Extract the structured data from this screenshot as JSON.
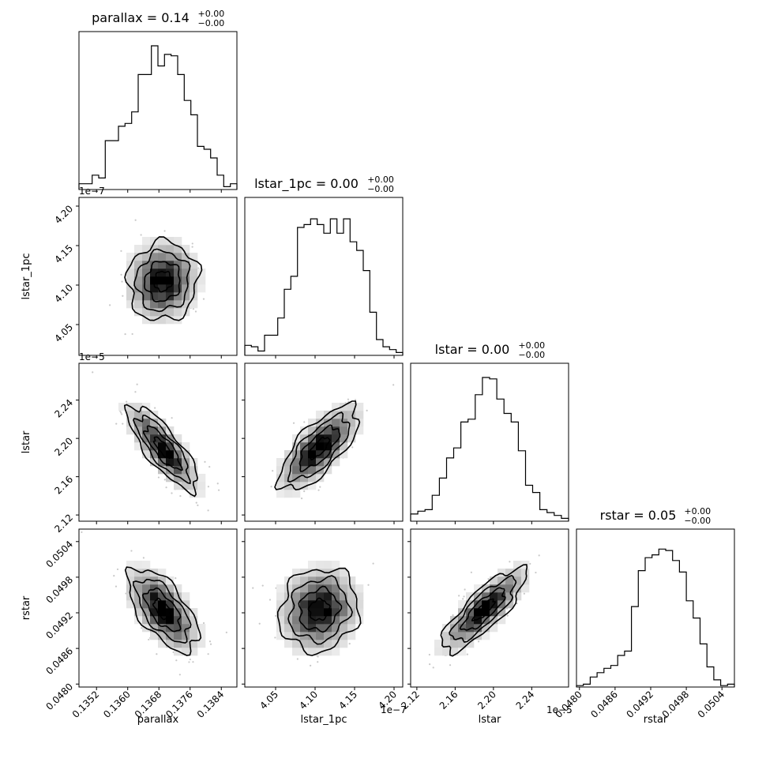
{
  "chart_data": {
    "type": "corner",
    "parameters": [
      "parallax",
      "lstar_1pc",
      "lstar",
      "rstar"
    ],
    "titles": [
      {
        "main": "parallax = 0.14",
        "sup": "+0.00",
        "sub": "−0.00"
      },
      {
        "main": "lstar_1pc = 0.00",
        "sup": "+0.00",
        "sub": "−0.00"
      },
      {
        "main": "lstar = 0.00",
        "sup": "+0.00",
        "sub": "−0.00"
      },
      {
        "main": "rstar = 0.05",
        "sup": "+0.00",
        "sub": "−0.00"
      }
    ],
    "axis_labels": {
      "x": [
        "parallax",
        "lstar_1pc",
        "lstar",
        "rstar"
      ],
      "y": [
        "lstar_1pc",
        "lstar",
        "rstar"
      ]
    },
    "offset_texts": {
      "lstar_1pc_y": "1e−7",
      "lstar_y": "1e−5",
      "lstar_1pc_x": "1e−7",
      "lstar_x": "1e−5"
    },
    "ranges": [
      [
        0.13475,
        0.1388
      ],
      [
        4.011,
        4.211
      ],
      [
        2.1135,
        2.2785
      ],
      [
        0.04795,
        0.05061
      ]
    ],
    "tick_values": [
      [
        0.1352,
        0.136,
        0.1368,
        0.1376,
        0.1384
      ],
      [
        4.05,
        4.1,
        4.15,
        4.2
      ],
      [
        2.12,
        2.16,
        2.2,
        2.24
      ],
      [
        0.048,
        0.0486,
        0.0492,
        0.0498,
        0.0504
      ]
    ],
    "tick_labels": [
      [
        "0.1352",
        "0.1360",
        "0.1368",
        "0.1376",
        "0.1384"
      ],
      [
        "4.05",
        "4.10",
        "4.15",
        "4.20"
      ],
      [
        "2.12",
        "2.16",
        "2.20",
        "2.24"
      ],
      [
        "0.0480",
        "0.0486",
        "0.0492",
        "0.0498",
        "0.0504"
      ]
    ],
    "histograms": [
      [
        0.04,
        0.04,
        0.1,
        0.08,
        0.34,
        0.34,
        0.44,
        0.46,
        0.54,
        0.8,
        0.8,
        1.0,
        0.86,
        0.94,
        0.93,
        0.8,
        0.62,
        0.52,
        0.3,
        0.28,
        0.22,
        0.1,
        0.02,
        0.04
      ],
      [
        0.07,
        0.06,
        0.03,
        0.14,
        0.14,
        0.26,
        0.46,
        0.55,
        0.89,
        0.91,
        0.95,
        0.91,
        0.85,
        0.95,
        0.85,
        0.95,
        0.79,
        0.73,
        0.59,
        0.3,
        0.11,
        0.06,
        0.04,
        0.02
      ],
      [
        0.05,
        0.07,
        0.08,
        0.18,
        0.3,
        0.44,
        0.51,
        0.69,
        0.71,
        0.88,
        1.0,
        0.99,
        0.85,
        0.75,
        0.69,
        0.49,
        0.25,
        0.2,
        0.08,
        0.06,
        0.04,
        0.02
      ],
      [
        0.01,
        0.02,
        0.07,
        0.1,
        0.13,
        0.15,
        0.22,
        0.25,
        0.56,
        0.81,
        0.9,
        0.92,
        0.96,
        0.95,
        0.88,
        0.8,
        0.6,
        0.48,
        0.3,
        0.14,
        0.05,
        0.01,
        0.02
      ]
    ],
    "correlations": {
      "1,0": 0.05,
      "2,0": -0.8,
      "2,1": 0.72,
      "3,0": -0.62,
      "3,1": 0.1,
      "3,2": 0.82
    },
    "centers": [
      0.1369,
      4.105,
      2.19,
      0.04925
    ],
    "spreads": [
      0.00045,
      0.025,
      0.022,
      0.00035
    ],
    "layout": {
      "grid": true,
      "legend": "none"
    }
  }
}
